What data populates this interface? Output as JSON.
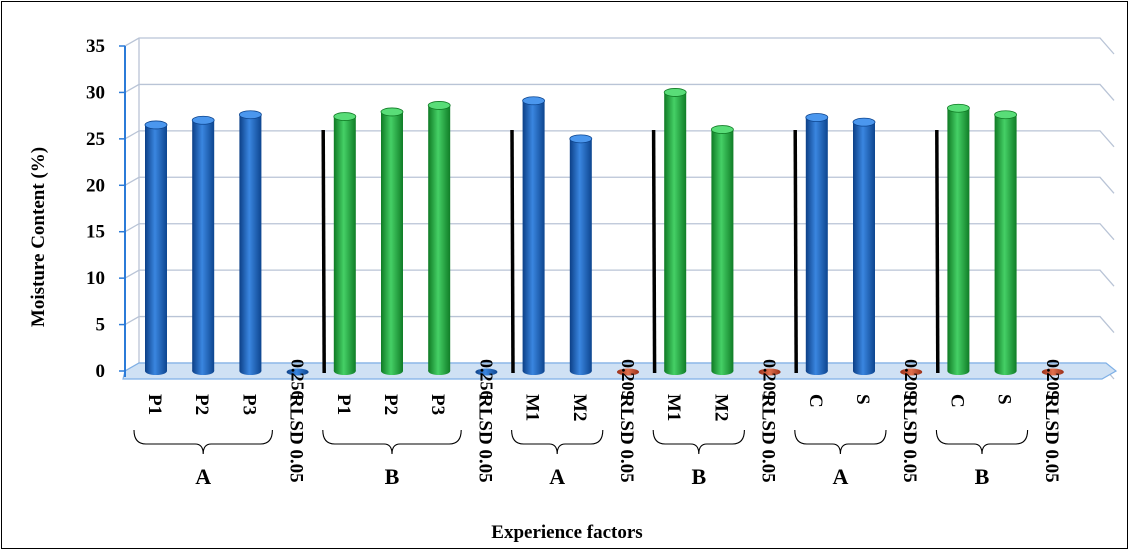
{
  "chart_data": {
    "type": "bar",
    "title": "",
    "xlabel": "Experience factors",
    "ylabel": "Moisture Content (%)",
    "ylim": [
      0,
      35
    ],
    "yticks": [
      "0",
      "5",
      "10",
      "15",
      "20",
      "25",
      "30",
      "35"
    ],
    "grid": true,
    "categories": [
      "P1",
      "P2",
      "P3",
      "RLSD 0.05",
      "P1",
      "P2",
      "P3",
      "RLSD 0.05",
      "M1",
      "M2",
      "RLSD 0.05",
      "M1",
      "M2",
      "RLSD 0.05",
      "C",
      "S",
      "RLSD 0.05",
      "C",
      "S",
      "RLSD 0.05"
    ],
    "values": [
      26.5,
      27.0,
      27.6,
      0.256,
      27.4,
      27.9,
      28.6,
      0.256,
      29.1,
      25.0,
      0.209,
      30.0,
      26.0,
      0.209,
      27.3,
      26.8,
      0.209,
      28.3,
      27.6,
      0.209
    ],
    "value_labels": [
      "",
      "",
      "",
      "0.256",
      "",
      "",
      "",
      "0.256",
      "",
      "",
      "0.209",
      "",
      "",
      "0.209",
      "",
      "",
      "0.209",
      "",
      "",
      "0.209"
    ],
    "bar_colors": [
      "blue",
      "blue",
      "blue",
      "blue",
      "green",
      "green",
      "green",
      "blue",
      "blue",
      "blue",
      "red",
      "green",
      "green",
      "red",
      "blue",
      "blue",
      "red",
      "green",
      "green",
      "red"
    ],
    "groups": [
      {
        "label": "A",
        "first": 0,
        "last": 2
      },
      {
        "label": "B",
        "first": 4,
        "last": 6
      },
      {
        "label": "A",
        "first": 8,
        "last": 9
      },
      {
        "label": "B",
        "first": 11,
        "last": 12
      },
      {
        "label": "A",
        "first": 14,
        "last": 15
      },
      {
        "label": "B",
        "first": 17,
        "last": 18
      }
    ],
    "separators_after": [
      3,
      7,
      10,
      13,
      16
    ]
  },
  "colors": {
    "blue": "#1f64b8",
    "green": "#1faa3c",
    "red": "#c8482a",
    "grid": "#b9c4d6",
    "axis": "#2b7bd8"
  }
}
